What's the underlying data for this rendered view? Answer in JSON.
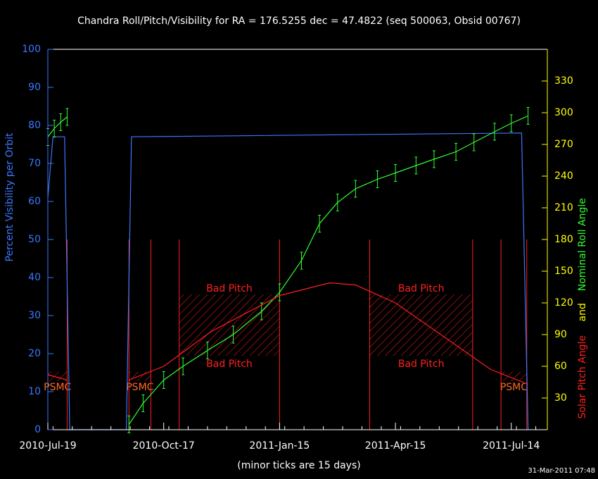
{
  "chart_data": {
    "type": "line",
    "title": "Chandra Roll/Pitch/Visibility for RA = 176.5255 dec = 47.4822 (seq 500063, Obsid 00767)",
    "x_label": "(minor ticks are 15 days)",
    "y_label": "Percent Visibility per Orbit",
    "y2_label_parts": [
      {
        "text": "Solar Pitch Angle",
        "color": "#ff2020"
      },
      {
        "text": "and",
        "color": "#ffff00"
      },
      {
        "text": "Nominal Roll Angle",
        "color": "#30ff30"
      }
    ],
    "timestamp": "31-Mar-2011 07:48",
    "xlim": [
      "2010-Jul-19",
      "2011-Aug-11"
    ],
    "xticks": [
      "2010-Jul-19",
      "2010-Oct-17",
      "2011-Jan-15",
      "2011-Apr-15",
      "2011-Jul-14"
    ],
    "ylim": [
      0,
      100
    ],
    "yticks": [
      0,
      10,
      20,
      30,
      40,
      50,
      60,
      70,
      80,
      90,
      100
    ],
    "y2lim": [
      0,
      360
    ],
    "y2ticks": [
      30,
      60,
      90,
      120,
      150,
      180,
      210,
      240,
      270,
      300,
      330
    ],
    "series": [
      {
        "name": "Percent Visibility per Orbit",
        "color": "#3a78ff",
        "axis": "y",
        "x": [
          "2010-Jul-19",
          "2010-Jul-23",
          "2010-Aug-01",
          "2010-Aug-05",
          "2010-Sep-18",
          "2010-Sep-22",
          "2011-Jul-22",
          "2011-Jul-27"
        ],
        "values": [
          61,
          77,
          77,
          0,
          0,
          77,
          78,
          0
        ]
      },
      {
        "name": "Nominal Roll Angle",
        "color": "#30ff30",
        "axis": "y2",
        "x": [
          "2010-Jul-19",
          "2010-Jul-24",
          "2010-Jul-29",
          "2010-Aug-03",
          null,
          "2010-Sep-20",
          "2010-Oct-01",
          "2010-Oct-17",
          "2010-Nov-01",
          "2010-Nov-20",
          "2010-Dec-10",
          "2011-Jan-01",
          "2011-Jan-15",
          "2011-Feb-01",
          "2011-Feb-15",
          "2011-Mar-01",
          "2011-Mar-15",
          "2011-Apr-01",
          "2011-Apr-15",
          "2011-May-01",
          "2011-May-15",
          "2011-Jun-01",
          "2011-Jun-15",
          "2011-Jul-01",
          "2011-Jul-14",
          "2011-Jul-27"
        ],
        "values": [
          277,
          285,
          291,
          296,
          null,
          5,
          25,
          47,
          60,
          75,
          90,
          112,
          130,
          160,
          195,
          215,
          228,
          237,
          243,
          250,
          256,
          263,
          272,
          282,
          290,
          297
        ],
        "errors": [
          8,
          8,
          8,
          8,
          null,
          8,
          8,
          8,
          8,
          8,
          8,
          8,
          8,
          8,
          8,
          8,
          8,
          8,
          8,
          8,
          8,
          8,
          8,
          8,
          8,
          8
        ]
      },
      {
        "name": "Solar Pitch Angle",
        "color": "#ff2020",
        "axis": "y2",
        "x": [
          "2010-Jul-19",
          "2010-Aug-03",
          null,
          "2010-Sep-20",
          "2010-Oct-17",
          "2010-Nov-23",
          "2011-Jan-15",
          "2011-Feb-23",
          "2011-Mar-15",
          "2011-Apr-15",
          "2011-Jun-01",
          "2011-Jun-28",
          "2011-Jul-27"
        ],
        "values": [
          52,
          47,
          null,
          47,
          60,
          93,
          127,
          139,
          137,
          120,
          80,
          57,
          43
        ]
      }
    ],
    "marker_dates": [
      "2010-Aug-03",
      "2010-Sep-20",
      "2010-Oct-07",
      "2010-Oct-29",
      "2011-Jan-15",
      "2011-Mar-26",
      "2011-Jun-14",
      "2011-Jul-06",
      "2011-Jul-26"
    ],
    "marker_top": 180,
    "regions": [
      {
        "label": "Bad Pitch",
        "start": "2010-Oct-29",
        "end": "2011-Jan-15",
        "range": [
          70,
          128
        ]
      },
      {
        "label": "Bad Pitch",
        "start": "2011-Mar-26",
        "end": "2011-Jun-14",
        "range": [
          70,
          128
        ]
      },
      {
        "label": "PSMC",
        "start": "2010-Jul-19",
        "end": "2010-Aug-03",
        "range": [
          46,
          55
        ]
      },
      {
        "label": "PSMC",
        "start": "2010-Sep-20",
        "end": "2010-Oct-07",
        "range": [
          46,
          55
        ]
      },
      {
        "label": "PSMC",
        "start": "2011-Jul-06",
        "end": "2011-Jul-26",
        "range": [
          46,
          55
        ]
      }
    ]
  }
}
